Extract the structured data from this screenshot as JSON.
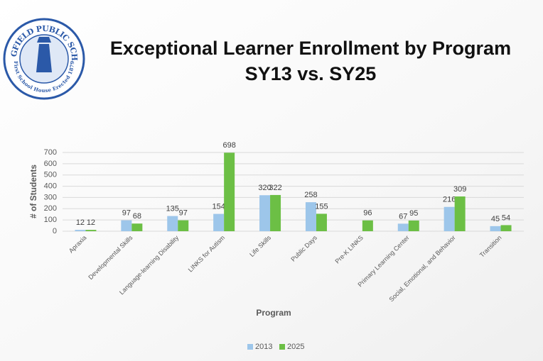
{
  "logo": {
    "top": "SPRINGFIELD PUBLIC SCHOOLS",
    "bottom": "First School House Erected 1879"
  },
  "chart_data": {
    "type": "bar",
    "title": "Exceptional Learner Enrollment by Program",
    "subtitle": "SY13 vs. SY25",
    "x_label": "Program",
    "y_label": "# of Students",
    "categories": [
      "Apraxia",
      "Developmental Skills",
      "Language-learning Disability",
      "LINKS for Autism",
      "Life Skills",
      "Public Days",
      "Pre-K LINKS",
      "Primary Learning Center",
      "Social, Emotional, and Behavior",
      "Transition"
    ],
    "series": [
      {
        "name": "2013",
        "color": "#9dc6ea",
        "values": [
          12,
          97,
          135,
          154,
          320,
          258,
          null,
          67,
          216,
          45
        ]
      },
      {
        "name": "2025",
        "color": "#6cbf45",
        "values": [
          12,
          68,
          97,
          698,
          322,
          155,
          96,
          95,
          309,
          54
        ]
      }
    ],
    "ylim": [
      0,
      700
    ],
    "yticks": [
      0,
      100,
      200,
      300,
      400,
      500,
      600,
      700
    ],
    "grid": true,
    "legend": "bottom"
  }
}
